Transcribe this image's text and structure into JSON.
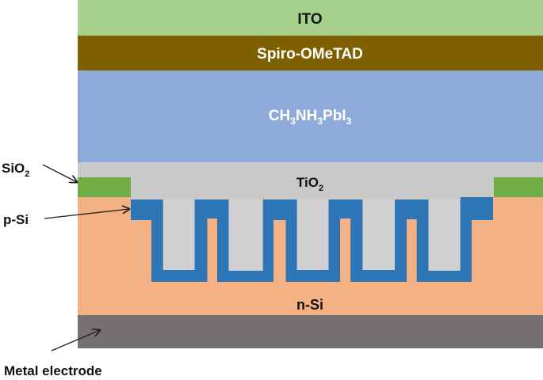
{
  "layers": {
    "ito": {
      "label": "ITO",
      "color": "#a9d18e"
    },
    "spiro": {
      "label": "Spiro-OMeTAD",
      "color": "#7f6000"
    },
    "perovskite": {
      "label_main": "CH",
      "sub1": "3",
      "mid": "NH",
      "sub2": "3",
      "tail": "PbI",
      "sub3": "3",
      "color": "#8eaadb"
    },
    "tio2": {
      "label": "TiO",
      "sub": "2",
      "color": "#c9c9c9"
    },
    "sio2": {
      "color": "#70ad47"
    },
    "psi": {
      "color": "#2e75b6"
    },
    "nsi": {
      "label": "n-Si",
      "color": "#f4b183"
    },
    "metal": {
      "color": "#767171"
    }
  },
  "callouts": {
    "sio2": {
      "label": "SiO",
      "sub": "2"
    },
    "psi": {
      "label": "p-Si"
    },
    "metal": {
      "label": "Metal electrode"
    }
  }
}
